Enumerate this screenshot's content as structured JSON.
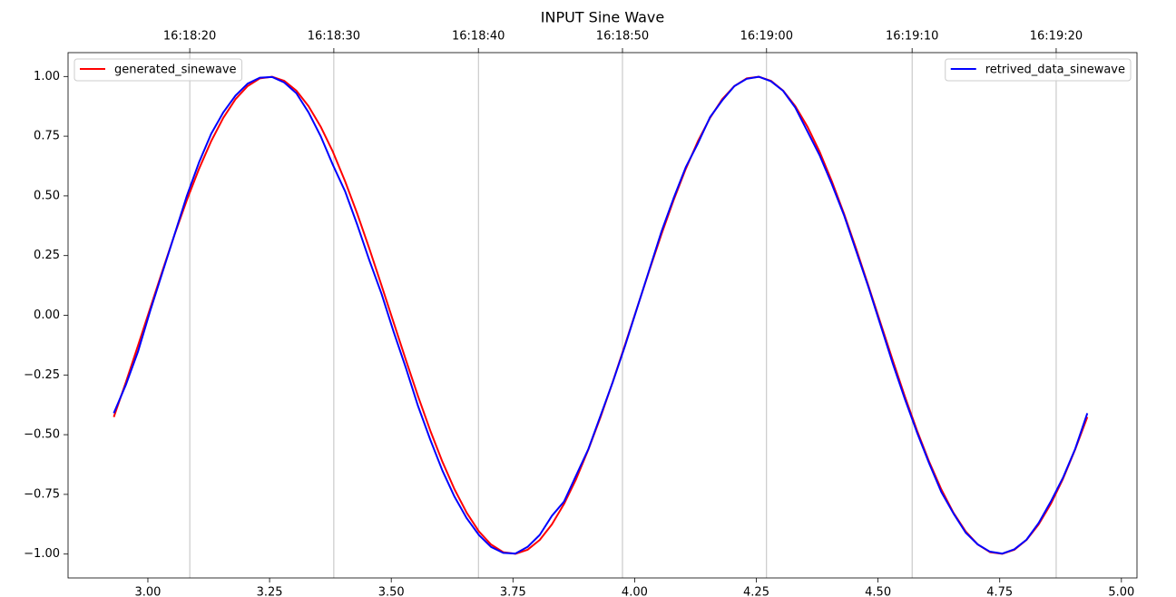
{
  "chart_data": {
    "type": "line",
    "title": "INPUT Sine Wave",
    "x": [
      2.93,
      2.955,
      2.98,
      3.005,
      3.03,
      3.055,
      3.08,
      3.105,
      3.13,
      3.155,
      3.18,
      3.205,
      3.23,
      3.255,
      3.28,
      3.305,
      3.33,
      3.355,
      3.38,
      3.405,
      3.43,
      3.455,
      3.48,
      3.505,
      3.53,
      3.555,
      3.58,
      3.605,
      3.63,
      3.655,
      3.68,
      3.705,
      3.73,
      3.755,
      3.78,
      3.805,
      3.83,
      3.855,
      3.88,
      3.905,
      3.93,
      3.955,
      3.98,
      4.005,
      4.03,
      4.055,
      4.08,
      4.105,
      4.13,
      4.155,
      4.18,
      4.205,
      4.23,
      4.255,
      4.28,
      4.305,
      4.33,
      4.355,
      4.38,
      4.405,
      4.43,
      4.455,
      4.48,
      4.505,
      4.53,
      4.555,
      4.58,
      4.605,
      4.63,
      4.655,
      4.68,
      4.705,
      4.73,
      4.755,
      4.78,
      4.805,
      4.83,
      4.855,
      4.88,
      4.905,
      4.93
    ],
    "series": [
      {
        "name": "generated_sinewave",
        "color": "#ff0000",
        "legend": "upper left",
        "values": [
          -0.426,
          -0.279,
          -0.125,
          0.031,
          0.187,
          0.339,
          0.482,
          0.613,
          0.729,
          0.827,
          0.905,
          0.96,
          0.992,
          0.999,
          0.982,
          0.941,
          0.876,
          0.79,
          0.685,
          0.562,
          0.426,
          0.279,
          0.125,
          -0.031,
          -0.187,
          -0.339,
          -0.482,
          -0.613,
          -0.729,
          -0.827,
          -0.905,
          -0.96,
          -0.992,
          -0.999,
          -0.982,
          -0.941,
          -0.876,
          -0.79,
          -0.685,
          -0.562,
          -0.426,
          -0.279,
          -0.125,
          0.031,
          0.187,
          0.339,
          0.482,
          0.613,
          0.729,
          0.827,
          0.905,
          0.96,
          0.992,
          0.999,
          0.982,
          0.941,
          0.876,
          0.79,
          0.685,
          0.562,
          0.426,
          0.279,
          0.125,
          -0.031,
          -0.187,
          -0.339,
          -0.482,
          -0.613,
          -0.729,
          -0.827,
          -0.905,
          -0.96,
          -0.992,
          -0.999,
          -0.982,
          -0.941,
          -0.876,
          -0.79,
          -0.685,
          -0.562,
          -0.426
        ]
      },
      {
        "name": "retrived_data_sinewave",
        "color": "#0000ff",
        "legend": "upper right",
        "values": [
          -0.41,
          -0.29,
          -0.15,
          0.02,
          0.18,
          0.34,
          0.5,
          0.64,
          0.76,
          0.85,
          0.92,
          0.97,
          0.995,
          0.998,
          0.975,
          0.93,
          0.85,
          0.75,
          0.63,
          0.52,
          0.38,
          0.23,
          0.09,
          -0.07,
          -0.22,
          -0.38,
          -0.52,
          -0.65,
          -0.76,
          -0.85,
          -0.92,
          -0.97,
          -0.995,
          -0.998,
          -0.97,
          -0.92,
          -0.84,
          -0.78,
          -0.67,
          -0.56,
          -0.42,
          -0.28,
          -0.13,
          0.03,
          0.19,
          0.35,
          0.49,
          0.62,
          0.72,
          0.83,
          0.9,
          0.96,
          0.99,
          0.999,
          0.98,
          0.94,
          0.87,
          0.77,
          0.67,
          0.55,
          0.42,
          0.27,
          0.12,
          -0.04,
          -0.2,
          -0.35,
          -0.49,
          -0.62,
          -0.74,
          -0.83,
          -0.91,
          -0.96,
          -0.99,
          -0.998,
          -0.98,
          -0.94,
          -0.87,
          -0.78,
          -0.68,
          -0.56,
          -0.41
        ]
      }
    ],
    "xlim": [
      2.836,
      5.032
    ],
    "xticks": [
      {
        "value": 3,
        "label": "3.00"
      },
      {
        "value": 3.25,
        "label": "3.25"
      },
      {
        "value": 3.5,
        "label": "3.50"
      },
      {
        "value": 3.75,
        "label": "3.75"
      },
      {
        "value": 4,
        "label": "4.00"
      },
      {
        "value": 4.25,
        "label": "4.25"
      },
      {
        "value": 4.5,
        "label": "4.50"
      },
      {
        "value": 4.75,
        "label": "4.75"
      },
      {
        "value": 5,
        "label": "5.00"
      }
    ],
    "x2ticks": [
      {
        "value": 3.086,
        "label": "16:18:20"
      },
      {
        "value": 3.382,
        "label": "16:18:30"
      },
      {
        "value": 3.679,
        "label": "16:18:40"
      },
      {
        "value": 3.975,
        "label": "16:18:50"
      },
      {
        "value": 4.271,
        "label": "16:19:00"
      },
      {
        "value": 4.57,
        "label": "16:19:10"
      },
      {
        "value": 4.866,
        "label": "16:19:20"
      }
    ],
    "x2grid": true,
    "ylim": [
      -1.1,
      1.1
    ],
    "yticks": [
      {
        "value": -1,
        "label": "−1.00"
      },
      {
        "value": -0.75,
        "label": "−0.75"
      },
      {
        "value": -0.5,
        "label": "−0.50"
      },
      {
        "value": -0.25,
        "label": "−0.25"
      },
      {
        "value": 0,
        "label": "0.00"
      },
      {
        "value": 0.25,
        "label": "0.25"
      },
      {
        "value": 0.5,
        "label": "0.50"
      },
      {
        "value": 0.75,
        "label": "0.75"
      },
      {
        "value": 1,
        "label": "1.00"
      }
    ]
  }
}
